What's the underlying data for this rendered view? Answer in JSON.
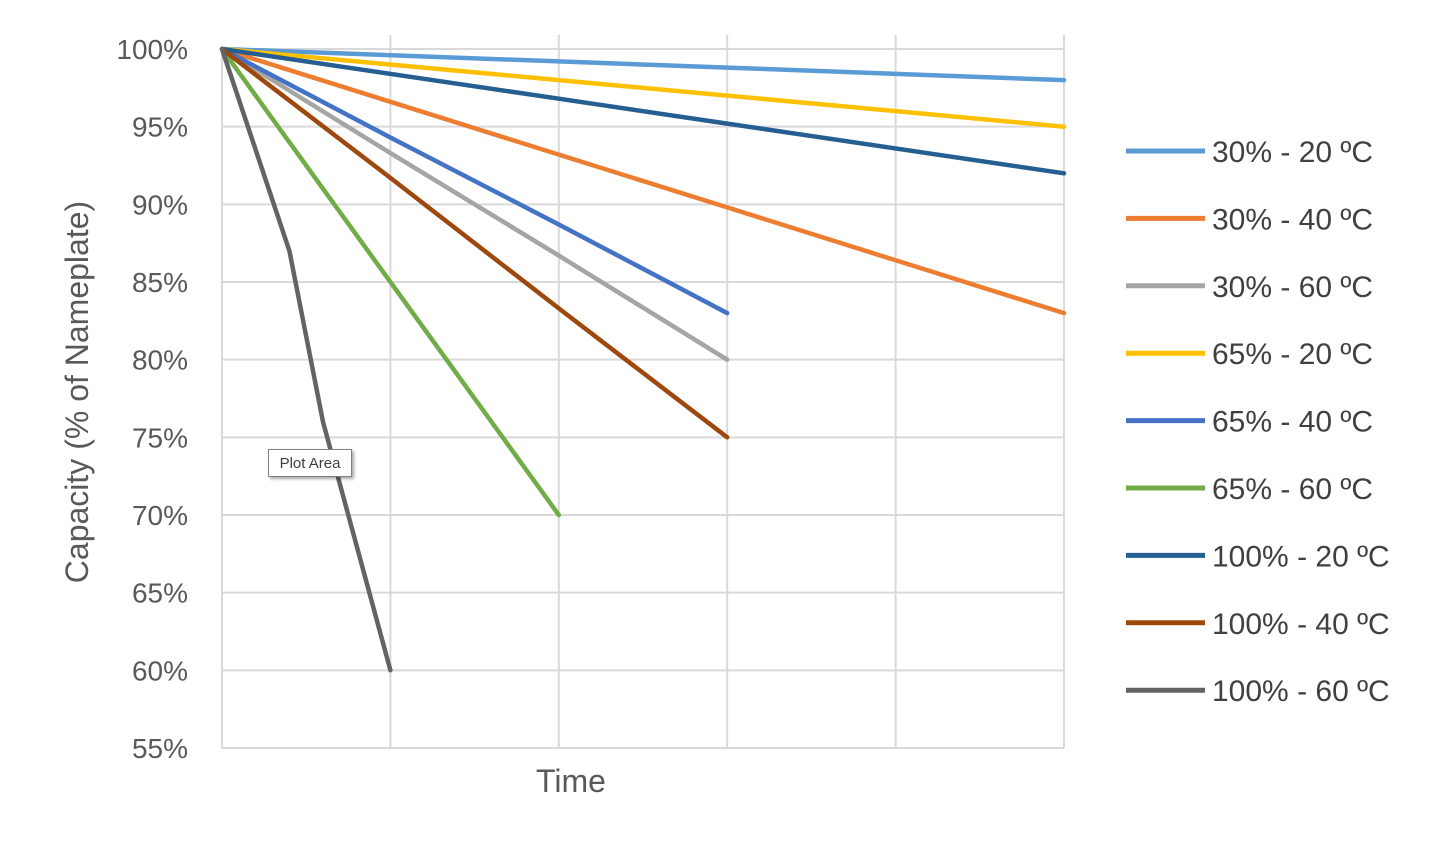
{
  "chart_data": {
    "type": "line",
    "title": "",
    "xlabel": "Time",
    "ylabel": "Capacity (% of Nameplate)",
    "ylim": [
      55,
      100
    ],
    "yticks": [
      "100%",
      "95%",
      "90%",
      "85%",
      "80%",
      "75%",
      "70%",
      "65%",
      "60%",
      "55%"
    ],
    "xlim": [
      0,
      5
    ],
    "x_tick_labels_shown": false,
    "grid": true,
    "legend_position": "right",
    "series": [
      {
        "name": "30% - 20 ºC",
        "color": "#5B9BD5",
        "x": [
          0,
          2,
          3,
          5
        ],
        "y": [
          100,
          99.2,
          98.8,
          98
        ]
      },
      {
        "name": "30% - 40 ºC",
        "color": "#ED7D31",
        "x": [
          0,
          1,
          2,
          3,
          5
        ],
        "y": [
          100,
          96.6,
          93.2,
          89.8,
          83
        ]
      },
      {
        "name": "30% - 60 ºC",
        "color": "#A5A5A5",
        "x": [
          0,
          1,
          2,
          3
        ],
        "y": [
          100,
          93.3,
          86.7,
          80
        ]
      },
      {
        "name": "65% - 20 ºC",
        "color": "#FFC000",
        "x": [
          0,
          2,
          3,
          5
        ],
        "y": [
          100,
          98,
          97,
          95
        ]
      },
      {
        "name": "65% - 40 ºC",
        "color": "#4472C4",
        "x": [
          0,
          1,
          2,
          3
        ],
        "y": [
          100,
          94.3,
          88.7,
          83
        ]
      },
      {
        "name": "65% - 60 ºC",
        "color": "#70AD47",
        "x": [
          0,
          1,
          2
        ],
        "y": [
          100,
          85,
          70
        ]
      },
      {
        "name": "100% - 20 ºC",
        "color": "#255E91",
        "x": [
          0,
          2,
          3,
          5
        ],
        "y": [
          100,
          96.8,
          95.2,
          92
        ]
      },
      {
        "name": "100% - 40 ºC",
        "color": "#9E480E",
        "x": [
          0,
          1,
          2,
          3
        ],
        "y": [
          100,
          91.7,
          83.3,
          75
        ]
      },
      {
        "name": "100% - 60 ºC",
        "color": "#636363",
        "x": [
          0,
          0.4,
          0.6,
          1
        ],
        "y": [
          100,
          87,
          76,
          60
        ]
      }
    ]
  },
  "tooltip": {
    "text": "Plot Area"
  }
}
